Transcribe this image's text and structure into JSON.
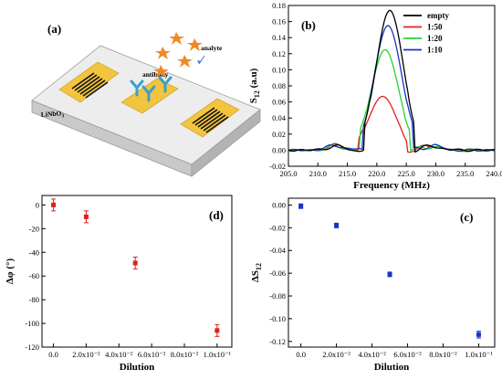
{
  "panel_a": {
    "tag": "(a)",
    "substrate_label": "LiNbO",
    "substrate_sub": "3",
    "antibody_label": "antibody",
    "analyte_label": "analyte",
    "colors": {
      "electrode": "#f3c43f",
      "antibody": "#3aa0c8",
      "analyte": "#f08a24",
      "substrate_top": "#ededed",
      "substrate_side": "#c8c8c8"
    }
  },
  "chart_data": [
    {
      "id": "b",
      "type": "line",
      "tag": "(b)",
      "xlabel": "Frequency (MHz)",
      "ylabel_main": "S",
      "ylabel_sub": "12",
      "ylabel_unit": " (a.u)",
      "xlim": [
        205.0,
        240.0
      ],
      "ylim": [
        -0.02,
        0.18
      ],
      "xticks": [
        "205.0",
        "210.0",
        "215.0",
        "220.0",
        "225.0",
        "230.0",
        "235.0",
        "240.0"
      ],
      "yticks": [
        "-0.02",
        "0.00",
        "0.02",
        "0.04",
        "0.06",
        "0.08",
        "0.10",
        "0.12",
        "0.14",
        "0.16",
        "0.18"
      ],
      "legend_position": "top-right",
      "series": [
        {
          "name": "empty",
          "color": "#000000",
          "peak_x": 222.2,
          "peak_y": 0.174
        },
        {
          "name": "1:50",
          "color": "#e0201b",
          "peak_x": 221.0,
          "peak_y": 0.067
        },
        {
          "name": "1:20",
          "color": "#22d431",
          "peak_x": 221.4,
          "peak_y": 0.125
        },
        {
          "name": "1:10",
          "color": "#1a33c9",
          "peak_x": 221.9,
          "peak_y": 0.155
        }
      ]
    },
    {
      "id": "d",
      "type": "scatter",
      "tag": "(d)",
      "xlabel": "Dilution",
      "ylabel": "Δφ (°)",
      "xlim": [
        -0.007,
        0.109
      ],
      "ylim": [
        -120,
        8
      ],
      "xticks": [
        "0.0",
        "2.0x10⁻²",
        "4.0x10⁻²",
        "6.0x10⁻²",
        "8.0x10⁻²",
        "1.0x10⁻¹"
      ],
      "xtick_values": [
        0,
        0.02,
        0.04,
        0.06,
        0.08,
        0.1
      ],
      "yticks": [
        "0",
        "-20",
        "-40",
        "-60",
        "-80",
        "-100",
        "-120"
      ],
      "ytick_values": [
        0,
        -20,
        -40,
        -60,
        -80,
        -100,
        -120
      ],
      "color": "#e0201b",
      "points": [
        {
          "x": 0.0,
          "y": 0,
          "err": 5
        },
        {
          "x": 0.02,
          "y": -10,
          "err": 5
        },
        {
          "x": 0.05,
          "y": -49,
          "err": 5
        },
        {
          "x": 0.1,
          "y": -106,
          "err": 5
        }
      ]
    },
    {
      "id": "c",
      "type": "scatter",
      "tag": "(c)",
      "xlabel": "Dilution",
      "ylabel_main": "ΔS",
      "ylabel_sub": "12",
      "xlim": [
        -0.007,
        0.109
      ],
      "ylim": [
        -0.125,
        0.006
      ],
      "xticks": [
        "0.0",
        "2.0x10⁻²",
        "4.0x10⁻²",
        "6.0x10⁻²",
        "8.0x10⁻²",
        "1.0x10⁻¹"
      ],
      "xtick_values": [
        0,
        0.02,
        0.04,
        0.06,
        0.08,
        0.1
      ],
      "yticks": [
        "0.00",
        "-0.02",
        "-0.04",
        "-0.06",
        "-0.08",
        "-0.10",
        "-0.12"
      ],
      "ytick_values": [
        0,
        -0.02,
        -0.04,
        -0.06,
        -0.08,
        -0.1,
        -0.12
      ],
      "color": "#1a33c9",
      "points": [
        {
          "x": 0.0,
          "y": -0.001,
          "err": 0.002
        },
        {
          "x": 0.02,
          "y": -0.018,
          "err": 0.002
        },
        {
          "x": 0.05,
          "y": -0.061,
          "err": 0.002
        },
        {
          "x": 0.1,
          "y": -0.114,
          "err": 0.003
        }
      ]
    }
  ]
}
